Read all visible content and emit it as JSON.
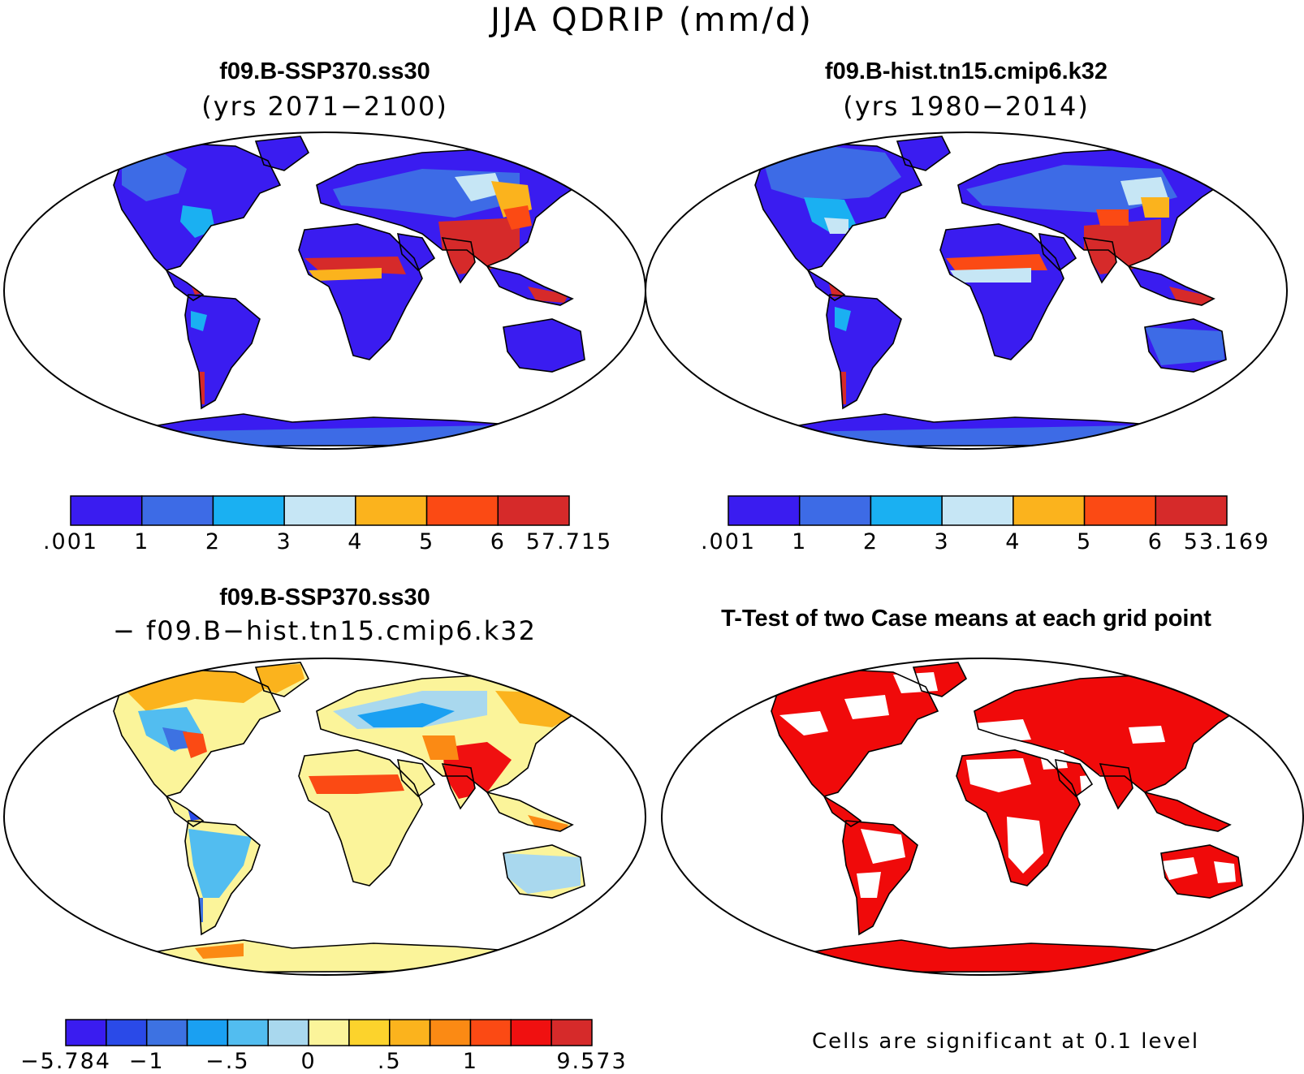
{
  "title": "JJA QDRIP (mm/d)",
  "panels": [
    {
      "id": "ssp370",
      "title": "f09.B-SSP370.ss30",
      "subtitle": "(yrs 2071−2100)",
      "colorbar": {
        "labels": [
          ".001",
          "1",
          "2",
          "3",
          "4",
          "5",
          "6",
          "57.715"
        ],
        "colors": [
          "#3a1cf0",
          "#3d6be6",
          "#1ab0f2",
          "#c6e6f5",
          "#fbb31d",
          "#fb4a14",
          "#d62a2a"
        ]
      }
    },
    {
      "id": "hist",
      "title": "f09.B-hist.tn15.cmip6.k32",
      "subtitle": "(yrs 1980−2014)",
      "colorbar": {
        "labels": [
          ".001",
          "1",
          "2",
          "3",
          "4",
          "5",
          "6",
          "53.169"
        ],
        "colors": [
          "#3a1cf0",
          "#3d6be6",
          "#1ab0f2",
          "#c6e6f5",
          "#fbb31d",
          "#fb4a14",
          "#d62a2a"
        ]
      }
    },
    {
      "id": "diff",
      "title": "f09.B-SSP370.ss30",
      "subtitle": "− f09.B−hist.tn15.cmip6.k32",
      "colorbar": {
        "labels": [
          "−5.784",
          "−1",
          "−.5",
          "0",
          ".5",
          "1",
          "9.573"
        ],
        "colors": [
          "#3a1cf0",
          "#2a4ae8",
          "#3d72e2",
          "#1aa0f2",
          "#52bdf0",
          "#a9d8ee",
          "#fbf49a",
          "#fcd32c",
          "#fbb31d",
          "#fb8a14",
          "#fb4a14",
          "#f01010",
          "#d62a2a"
        ]
      }
    },
    {
      "id": "ttest",
      "title": "T-Test of two Case means at each grid point",
      "note": "Cells are significant at 0.1 level",
      "color": "#f00a0a"
    }
  ]
}
